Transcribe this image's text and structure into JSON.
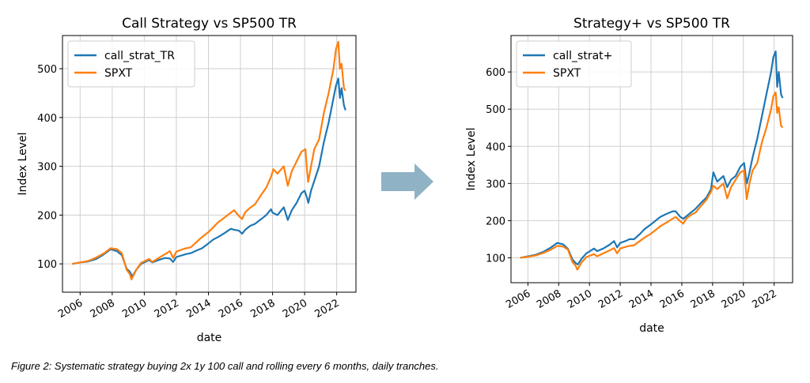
{
  "figure": {
    "caption": "Figure 2: Systematic strategy buying 2x 1y 100 call and rolling every 6 months, daily tranches.",
    "arrow": "right-arrow-icon",
    "arrow_color": "#8fb2c4"
  },
  "chart_data": [
    {
      "type": "line",
      "title": "Call Strategy vs SP500 TR",
      "xlabel": "date",
      "ylabel": "Index Level",
      "xlim": [
        2004.9,
        2023.2
      ],
      "ylim": [
        42,
        568
      ],
      "xticks": [
        2006,
        2008,
        2010,
        2012,
        2014,
        2016,
        2018,
        2020,
        2022
      ],
      "xtick_labels": [
        "2006",
        "2008",
        "2010",
        "2012",
        "2014",
        "2016",
        "2018",
        "2020",
        "2022"
      ],
      "yticks": [
        100,
        200,
        300,
        400,
        500
      ],
      "grid": true,
      "legend": "upper-left",
      "series": [
        {
          "name": "call_strat_TR",
          "color": "#1f77b4",
          "x": [
            2005.5,
            2006.0,
            2006.5,
            2007.0,
            2007.5,
            2007.9,
            2008.3,
            2008.6,
            2008.9,
            2009.1,
            2009.25,
            2009.5,
            2009.8,
            2010.3,
            2010.5,
            2010.9,
            2011.3,
            2011.6,
            2011.8,
            2012.0,
            2012.4,
            2012.6,
            2012.9,
            2013.3,
            2013.6,
            2014.0,
            2014.3,
            2014.6,
            2015.0,
            2015.4,
            2015.6,
            2015.9,
            2016.1,
            2016.3,
            2016.6,
            2016.9,
            2017.3,
            2017.6,
            2017.9,
            2018.0,
            2018.3,
            2018.7,
            2018.95,
            2019.2,
            2019.5,
            2019.8,
            2020.0,
            2020.15,
            2020.23,
            2020.4,
            2020.6,
            2020.9,
            2021.2,
            2021.5,
            2021.8,
            2021.95,
            2022.1,
            2022.2,
            2022.3,
            2022.45,
            2022.55
          ],
          "y": [
            100,
            103,
            105,
            110,
            120,
            130,
            126,
            118,
            90,
            84,
            74,
            88,
            100,
            108,
            103,
            108,
            112,
            111,
            104,
            114,
            118,
            120,
            122,
            128,
            132,
            142,
            150,
            155,
            163,
            172,
            170,
            168,
            162,
            170,
            178,
            182,
            192,
            200,
            212,
            205,
            200,
            216,
            190,
            210,
            225,
            245,
            250,
            235,
            225,
            250,
            270,
            300,
            350,
            390,
            440,
            465,
            480,
            440,
            460,
            425,
            415
          ]
        },
        {
          "name": "SPXT",
          "color": "#ff7f0e",
          "x": [
            2005.5,
            2006.0,
            2006.5,
            2007.0,
            2007.5,
            2007.9,
            2008.3,
            2008.6,
            2008.9,
            2009.1,
            2009.2,
            2009.5,
            2009.8,
            2010.3,
            2010.5,
            2010.9,
            2011.3,
            2011.6,
            2011.8,
            2012.0,
            2012.4,
            2012.6,
            2012.9,
            2013.3,
            2013.6,
            2014.0,
            2014.3,
            2014.6,
            2015.0,
            2015.4,
            2015.6,
            2015.9,
            2016.1,
            2016.3,
            2016.6,
            2016.9,
            2017.3,
            2017.6,
            2017.9,
            2018.05,
            2018.3,
            2018.7,
            2018.95,
            2019.2,
            2019.5,
            2019.8,
            2020.05,
            2020.15,
            2020.22,
            2020.4,
            2020.6,
            2020.9,
            2021.2,
            2021.5,
            2021.8,
            2021.95,
            2022.1,
            2022.2,
            2022.3,
            2022.45,
            2022.55
          ],
          "y": [
            100,
            103,
            106,
            113,
            122,
            132,
            130,
            122,
            88,
            79,
            68,
            88,
            102,
            110,
            104,
            112,
            120,
            126,
            112,
            125,
            130,
            132,
            134,
            146,
            155,
            165,
            175,
            185,
            195,
            205,
            210,
            198,
            192,
            206,
            215,
            222,
            242,
            256,
            278,
            294,
            285,
            300,
            260,
            290,
            310,
            330,
            335,
            290,
            268,
            300,
            335,
            355,
            410,
            450,
            500,
            540,
            555,
            500,
            510,
            460,
            455
          ]
        }
      ]
    },
    {
      "type": "line",
      "title": "Strategy+ vs SP500 TR",
      "xlabel": "date",
      "ylabel": "Index Level",
      "xlim": [
        2004.9,
        2023.2
      ],
      "ylim": [
        33,
        698
      ],
      "xticks": [
        2006,
        2008,
        2010,
        2012,
        2014,
        2016,
        2018,
        2020,
        2022
      ],
      "xtick_labels": [
        "2006",
        "2008",
        "2010",
        "2012",
        "2014",
        "2016",
        "2018",
        "2020",
        "2022"
      ],
      "yticks": [
        100,
        200,
        300,
        400,
        500,
        600
      ],
      "grid": true,
      "legend": "upper-left",
      "series": [
        {
          "name": "call_strat+",
          "color": "#1f77b4",
          "x": [
            2005.5,
            2006.0,
            2006.5,
            2007.0,
            2007.5,
            2007.9,
            2008.3,
            2008.6,
            2008.9,
            2009.1,
            2009.25,
            2009.5,
            2009.8,
            2010.3,
            2010.5,
            2010.9,
            2011.3,
            2011.6,
            2011.8,
            2012.0,
            2012.4,
            2012.6,
            2012.9,
            2013.3,
            2013.6,
            2014.0,
            2014.3,
            2014.6,
            2015.0,
            2015.4,
            2015.6,
            2015.9,
            2016.1,
            2016.3,
            2016.6,
            2016.9,
            2017.3,
            2017.6,
            2017.9,
            2018.05,
            2018.3,
            2018.7,
            2018.95,
            2019.2,
            2019.5,
            2019.8,
            2020.05,
            2020.15,
            2020.23,
            2020.4,
            2020.6,
            2020.9,
            2021.2,
            2021.5,
            2021.8,
            2021.95,
            2022.1,
            2022.2,
            2022.3,
            2022.45,
            2022.55
          ],
          "y": [
            100,
            104,
            108,
            116,
            128,
            140,
            136,
            124,
            95,
            86,
            82,
            98,
            112,
            125,
            118,
            125,
            135,
            145,
            128,
            140,
            146,
            150,
            150,
            165,
            178,
            190,
            200,
            210,
            218,
            225,
            225,
            210,
            205,
            212,
            222,
            232,
            250,
            262,
            285,
            330,
            305,
            320,
            290,
            310,
            320,
            345,
            355,
            320,
            300,
            330,
            370,
            420,
            480,
            540,
            600,
            640,
            655,
            560,
            600,
            540,
            530
          ]
        },
        {
          "name": "SPXT",
          "color": "#ff7f0e",
          "x": [
            2005.5,
            2006.0,
            2006.5,
            2007.0,
            2007.5,
            2007.9,
            2008.3,
            2008.6,
            2008.9,
            2009.1,
            2009.2,
            2009.5,
            2009.8,
            2010.3,
            2010.5,
            2010.9,
            2011.3,
            2011.6,
            2011.8,
            2012.0,
            2012.4,
            2012.6,
            2012.9,
            2013.3,
            2013.6,
            2014.0,
            2014.3,
            2014.6,
            2015.0,
            2015.4,
            2015.6,
            2015.9,
            2016.1,
            2016.3,
            2016.6,
            2016.9,
            2017.3,
            2017.6,
            2017.9,
            2018.05,
            2018.3,
            2018.7,
            2018.95,
            2019.2,
            2019.5,
            2019.8,
            2020.05,
            2020.15,
            2020.22,
            2020.4,
            2020.6,
            2020.9,
            2021.2,
            2021.5,
            2021.8,
            2021.95,
            2022.1,
            2022.2,
            2022.3,
            2022.45,
            2022.55
          ],
          "y": [
            100,
            103,
            106,
            113,
            122,
            132,
            130,
            122,
            88,
            79,
            68,
            88,
            102,
            110,
            104,
            112,
            120,
            126,
            112,
            125,
            130,
            132,
            134,
            146,
            155,
            165,
            175,
            185,
            195,
            205,
            210,
            198,
            192,
            206,
            215,
            222,
            242,
            256,
            278,
            294,
            285,
            300,
            260,
            290,
            310,
            330,
            335,
            290,
            258,
            300,
            335,
            355,
            410,
            450,
            500,
            535,
            545,
            490,
            505,
            455,
            450
          ]
        }
      ]
    }
  ]
}
